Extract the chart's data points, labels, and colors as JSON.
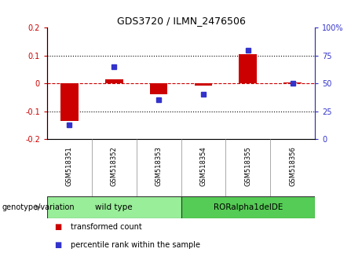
{
  "title": "GDS3720 / ILMN_2476506",
  "categories": [
    "GSM518351",
    "GSM518352",
    "GSM518353",
    "GSM518354",
    "GSM518355",
    "GSM518356"
  ],
  "red_values": [
    -0.135,
    0.015,
    -0.04,
    -0.008,
    0.105,
    0.002
  ],
  "blue_values_pct": [
    13,
    65,
    35,
    40,
    80,
    50
  ],
  "ylim_left": [
    -0.2,
    0.2
  ],
  "ylim_right": [
    0,
    100
  ],
  "yticks_left": [
    -0.2,
    -0.1,
    0.0,
    0.1,
    0.2
  ],
  "yticks_right": [
    0,
    25,
    50,
    75,
    100
  ],
  "ytick_labels_left": [
    "-0.2",
    "-0.1",
    "0",
    "0.1",
    "0.2"
  ],
  "ytick_labels_right": [
    "0",
    "25",
    "50",
    "75",
    "100%"
  ],
  "red_color": "#CC0000",
  "blue_color": "#3333CC",
  "dotted_color": "#000000",
  "bar_width": 0.4,
  "groups": [
    {
      "label": "wild type",
      "spans": [
        0,
        3
      ],
      "color": "#99EE99"
    },
    {
      "label": "RORalpha1delDE",
      "spans": [
        3,
        6
      ],
      "color": "#55CC55"
    }
  ],
  "group_label": "genotype/variation",
  "legend_items": [
    {
      "label": "transformed count",
      "color": "#CC0000"
    },
    {
      "label": "percentile rank within the sample",
      "color": "#3333CC"
    }
  ],
  "tick_bg": "#BBBBBB",
  "separator_color": "#333333"
}
